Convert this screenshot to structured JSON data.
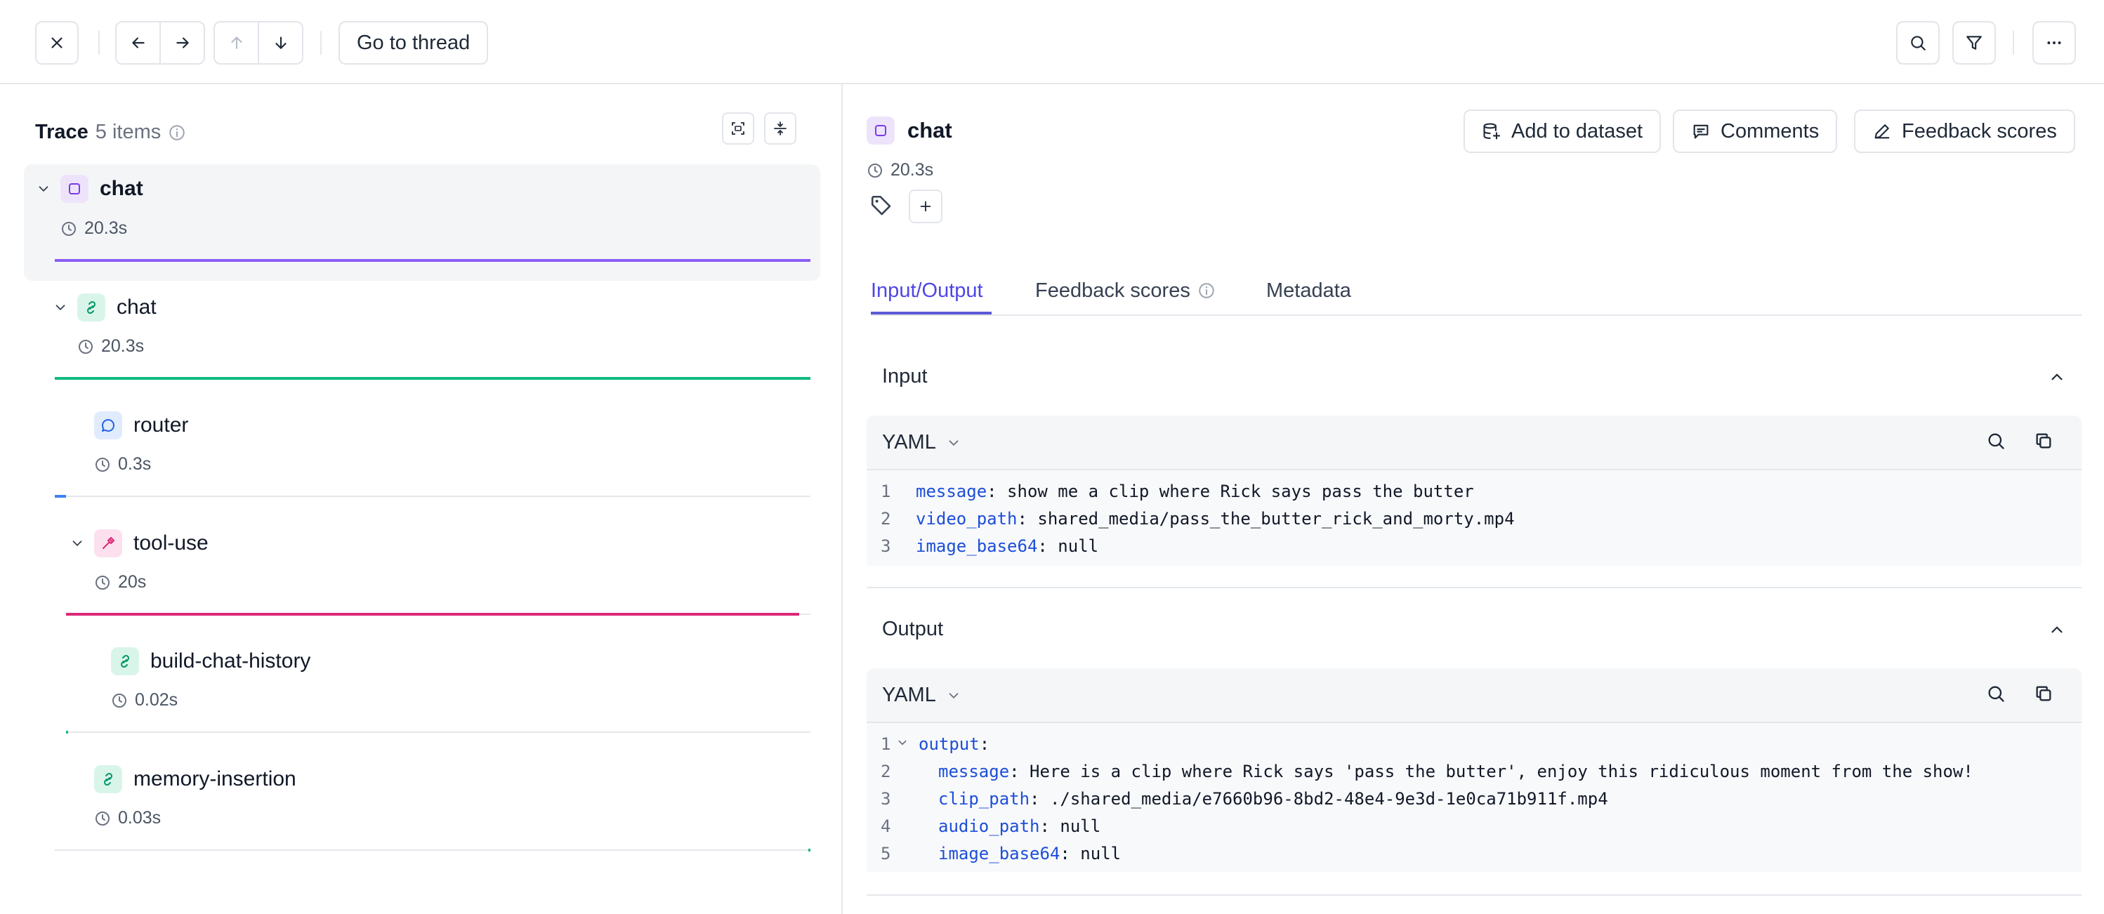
{
  "toolbar": {
    "goto_label": "Go to thread",
    "icons": [
      "close-icon",
      "arrow-left-icon",
      "arrow-right-icon",
      "arrow-up-icon",
      "arrow-down-icon",
      "search-icon",
      "filter-icon",
      "more-icon"
    ]
  },
  "trace": {
    "title": "Trace",
    "count": "5 items",
    "nodes": [
      {
        "label": "chat",
        "duration": "20.3s",
        "icon": "span-icon",
        "color": "#8b5cf6",
        "bar_fraction": 1.0
      },
      {
        "label": "chat",
        "duration": "20.3s",
        "icon": "link-icon",
        "color": "#10b981",
        "bar_fraction": 1.0
      },
      {
        "label": "router",
        "duration": "0.3s",
        "icon": "message-icon",
        "color": "#3b82f6",
        "bar_fraction": 0.015
      },
      {
        "label": "tool-use",
        "duration": "20s",
        "icon": "hammer-icon",
        "color": "#db2777",
        "bar_fraction": 0.985
      },
      {
        "label": "build-chat-history",
        "duration": "0.02s",
        "icon": "link-icon",
        "color": "#10b981",
        "bar_fraction": 0.001
      },
      {
        "label": "memory-insertion",
        "duration": "0.03s",
        "icon": "link-icon",
        "color": "#10b981",
        "bar_fraction": 0.0015
      }
    ]
  },
  "detail": {
    "title": "chat",
    "duration": "20.3s",
    "actions": {
      "add_dataset": "Add to dataset",
      "comments": "Comments",
      "feedback": "Feedback scores"
    },
    "tabs": [
      "Input/Output",
      "Feedback scores",
      "Metadata"
    ],
    "input": {
      "title": "Input",
      "format": "YAML",
      "lines": [
        {
          "n": "1",
          "key": "message",
          "value": ": show me a clip where Rick says pass the butter"
        },
        {
          "n": "2",
          "key": "video_path",
          "value": ": shared_media/pass_the_butter_rick_and_morty.mp4"
        },
        {
          "n": "3",
          "key": "image_base64",
          "value": ": null"
        }
      ]
    },
    "output": {
      "title": "Output",
      "format": "YAML",
      "lines": [
        {
          "n": "1",
          "key": "output",
          "value": ":"
        },
        {
          "n": "2",
          "key": "message",
          "value": ": Here is a clip where Rick says 'pass the butter', enjoy this ridiculous moment from the show!"
        },
        {
          "n": "3",
          "key": "clip_path",
          "value": ": ./shared_media/e7660b96-8bd2-48e4-9e3d-1e0ca71b911f.mp4"
        },
        {
          "n": "4",
          "key": "audio_path",
          "value": ": null"
        },
        {
          "n": "5",
          "key": "image_base64",
          "value": ": null"
        }
      ]
    }
  }
}
